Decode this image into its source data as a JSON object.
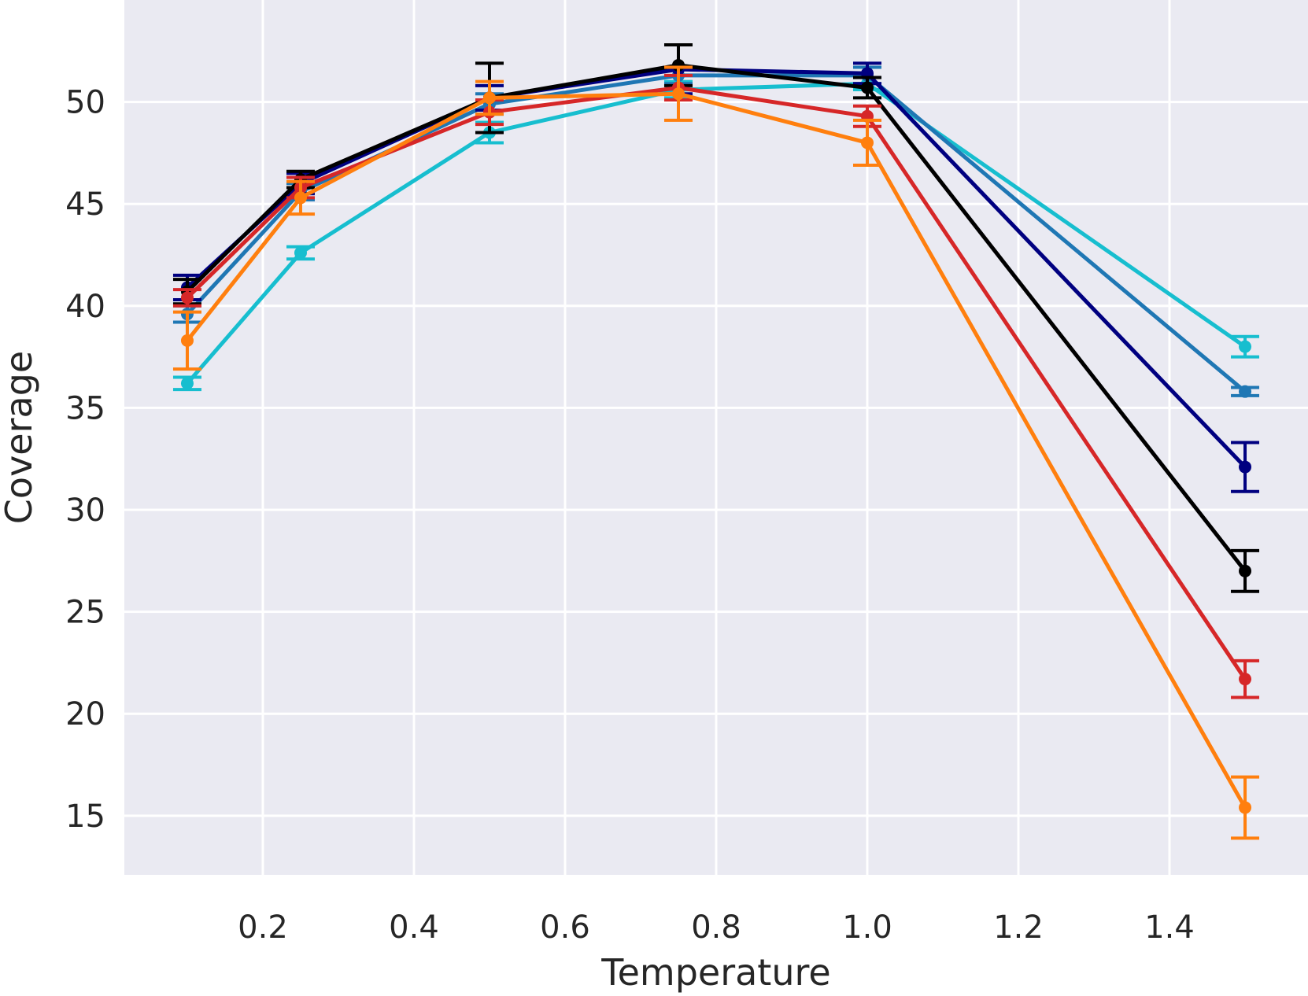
{
  "chart_data": {
    "type": "line",
    "title": "",
    "xlabel": "Temperature",
    "ylabel": "Coverage",
    "xlim": [
      0.0167,
      1.5833
    ],
    "ylim": [
      12.1,
      55.0
    ],
    "xticks": [
      0.2,
      0.4,
      0.6,
      0.8,
      1.0,
      1.2,
      1.4
    ],
    "xtick_labels": [
      "0.2",
      "0.4",
      "0.6",
      "0.8",
      "1.0",
      "1.2",
      "1.4"
    ],
    "yticks": [
      15,
      20,
      25,
      30,
      35,
      40,
      45,
      50
    ],
    "ytick_labels": [
      "15",
      "20",
      "25",
      "30",
      "35",
      "40",
      "45",
      "50"
    ],
    "grid": true,
    "background": "#eaeaf2",
    "x": [
      0.1,
      0.25,
      0.5,
      0.75,
      1.0,
      1.5
    ],
    "series": [
      {
        "name": "cyan",
        "color": "#17becf",
        "values": [
          36.2,
          42.6,
          48.5,
          50.6,
          50.9,
          38.0
        ],
        "errors": [
          0.3,
          0.3,
          0.5,
          0.4,
          0.3,
          0.5
        ]
      },
      {
        "name": "steel blue",
        "color": "#1f77b4",
        "values": [
          39.6,
          45.6,
          49.9,
          51.3,
          51.3,
          35.8
        ],
        "errors": [
          0.4,
          0.4,
          0.5,
          0.4,
          0.4,
          0.2
        ]
      },
      {
        "name": "navy",
        "color": "#000080",
        "values": [
          40.9,
          46.0,
          50.2,
          51.6,
          51.4,
          32.1
        ],
        "errors": [
          0.6,
          0.5,
          0.6,
          1.2,
          0.5,
          1.2
        ]
      },
      {
        "name": "black",
        "color": "#000000",
        "values": [
          40.7,
          46.2,
          50.2,
          51.8,
          50.7,
          27.0
        ],
        "errors": [
          0.6,
          0.4,
          1.7,
          1.0,
          0.5,
          1.0
        ]
      },
      {
        "name": "red",
        "color": "#d62728",
        "values": [
          40.4,
          45.8,
          49.5,
          50.7,
          49.3,
          21.7
        ],
        "errors": [
          0.4,
          0.5,
          0.6,
          0.6,
          0.5,
          0.9
        ]
      },
      {
        "name": "orange",
        "color": "#ff7f0e",
        "values": [
          38.3,
          45.3,
          50.2,
          50.4,
          48.0,
          15.4
        ],
        "errors": [
          1.4,
          0.8,
          0.8,
          1.3,
          1.1,
          1.5
        ]
      }
    ]
  }
}
